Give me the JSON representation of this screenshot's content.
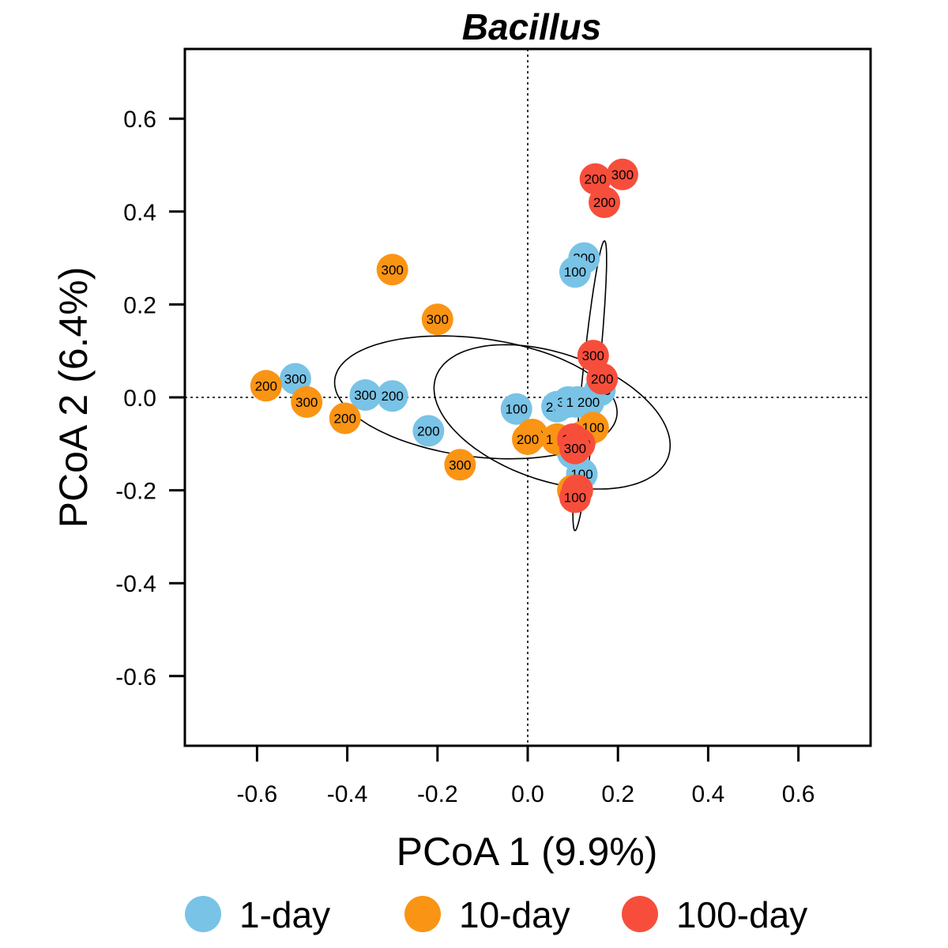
{
  "chart_data": {
    "type": "scatter",
    "title": "Bacillus",
    "xlabel": "PCoA 1 (9.9%)",
    "ylabel": "PCoA 2 (6.4%)",
    "xlim": [
      -0.76,
      0.76
    ],
    "ylim": [
      -0.75,
      0.75
    ],
    "x_ticks": [
      "-0.6",
      "-0.4",
      "-0.2",
      "0.0",
      "0.2",
      "0.4",
      "0.6"
    ],
    "y_ticks": [
      "-0.6",
      "-0.4",
      "-0.2",
      "0.0",
      "0.2",
      "0.4",
      "0.6"
    ],
    "reference_lines": {
      "x": 0,
      "y": 0,
      "style": "dotted"
    },
    "legend": {
      "position": "bottom",
      "entries": [
        "1-day",
        "10-day",
        "100-day"
      ]
    },
    "colors": {
      "1-day": "#79C3E6",
      "10-day": "#FA9414",
      "100-day": "#F74E3C"
    },
    "series": [
      {
        "name": "1-day",
        "points": [
          {
            "x": 0.125,
            "y": 0.3,
            "label": "300"
          },
          {
            "x": 0.105,
            "y": 0.27,
            "label": "100"
          },
          {
            "x": 0.16,
            "y": 0.015,
            "label": "100"
          },
          {
            "x": -0.515,
            "y": 0.04,
            "label": "300"
          },
          {
            "x": -0.36,
            "y": 0.005,
            "label": "300"
          },
          {
            "x": -0.3,
            "y": 0.003,
            "label": "200"
          },
          {
            "x": -0.22,
            "y": -0.072,
            "label": "200"
          },
          {
            "x": -0.025,
            "y": -0.025,
            "label": "100"
          },
          {
            "x": 0.065,
            "y": -0.02,
            "label": "200"
          },
          {
            "x": 0.09,
            "y": -0.01,
            "label": "300"
          },
          {
            "x": 0.11,
            "y": -0.01,
            "label": "100"
          },
          {
            "x": 0.135,
            "y": -0.01,
            "label": "200"
          },
          {
            "x": 0.1,
            "y": -0.12,
            "label": "100"
          },
          {
            "x": 0.12,
            "y": -0.165,
            "label": "100"
          }
        ]
      },
      {
        "name": "10-day",
        "points": [
          {
            "x": -0.3,
            "y": 0.275,
            "label": "300"
          },
          {
            "x": -0.2,
            "y": 0.168,
            "label": "300"
          },
          {
            "x": -0.58,
            "y": 0.025,
            "label": "200"
          },
          {
            "x": -0.49,
            "y": -0.01,
            "label": "300"
          },
          {
            "x": -0.405,
            "y": -0.045,
            "label": "200"
          },
          {
            "x": -0.15,
            "y": -0.145,
            "label": "300"
          },
          {
            "x": 0.01,
            "y": -0.08,
            "label": "200"
          },
          {
            "x": 0.0,
            "y": -0.09,
            "label": "200"
          },
          {
            "x": 0.065,
            "y": -0.09,
            "label": "100"
          },
          {
            "x": 0.09,
            "y": -0.095,
            "label": "300"
          },
          {
            "x": 0.12,
            "y": -0.085,
            "label": "100"
          },
          {
            "x": 0.145,
            "y": -0.065,
            "label": "100"
          },
          {
            "x": 0.1,
            "y": -0.2,
            "label": "100"
          }
        ]
      },
      {
        "name": "100-day",
        "points": [
          {
            "x": 0.15,
            "y": 0.47,
            "label": "200"
          },
          {
            "x": 0.21,
            "y": 0.48,
            "label": "300"
          },
          {
            "x": 0.17,
            "y": 0.42,
            "label": "200"
          },
          {
            "x": 0.145,
            "y": 0.09,
            "label": "300"
          },
          {
            "x": 0.165,
            "y": 0.04,
            "label": "200"
          },
          {
            "x": 0.1,
            "y": -0.09,
            "label": "100"
          },
          {
            "x": 0.115,
            "y": -0.1,
            "label": "300"
          },
          {
            "x": 0.105,
            "y": -0.11,
            "label": "300"
          },
          {
            "x": 0.11,
            "y": -0.2,
            "label": "100"
          },
          {
            "x": 0.105,
            "y": -0.215,
            "label": "100"
          }
        ]
      }
    ],
    "ellipses": [
      {
        "group": "10-day",
        "cx": -0.115,
        "cy": 0.0,
        "rx": 0.63,
        "ry": 0.255,
        "angle_deg": -7
      },
      {
        "group": "1-day",
        "cx": 0.054,
        "cy": -0.042,
        "rx": 0.543,
        "ry": 0.275,
        "angle_deg": -18
      },
      {
        "group": "100-day",
        "cx": 0.1375,
        "cy": 0.025,
        "rx": 0.627,
        "ry": 0.036,
        "angle_deg": 84
      }
    ]
  }
}
